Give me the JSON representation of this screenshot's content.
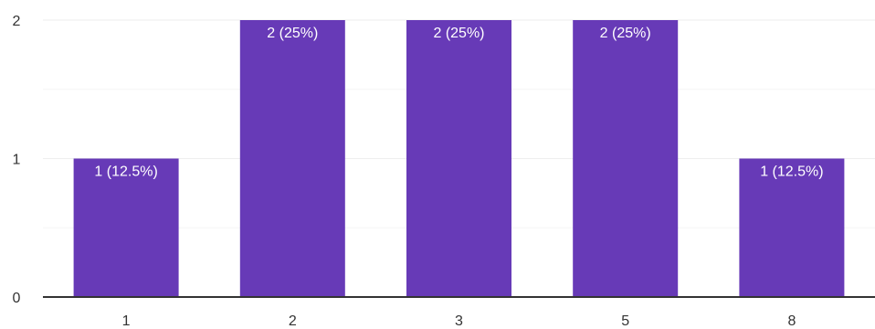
{
  "chart_data": {
    "type": "bar",
    "categories": [
      "1",
      "2",
      "3",
      "5",
      "8"
    ],
    "values": [
      1,
      2,
      2,
      2,
      1
    ],
    "data_labels": [
      "1 (12.5%)",
      "2 (25%)",
      "2 (25%)",
      "2 (25%)",
      "1 (12.5%)"
    ],
    "y_ticks": [
      "0",
      "1",
      "2"
    ],
    "ylim": [
      0,
      2
    ],
    "grid": true,
    "title": "",
    "xlabel": "",
    "ylabel": ""
  },
  "colors": {
    "bar": "#673ab7",
    "grid": "#eeeeee",
    "minor_grid": "#f5f5f5",
    "axis": "#333333"
  }
}
